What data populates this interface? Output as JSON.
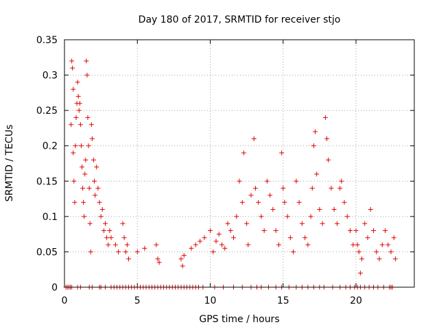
{
  "chart_data": {
    "type": "scatter",
    "title": "Day 180 of 2017, SRMTID for receiver stjo",
    "xlabel": "GPS time / hours",
    "ylabel": "SRMTID / TECUs",
    "xlim": [
      0,
      24
    ],
    "ylim": [
      0,
      0.35
    ],
    "xticks": [
      0,
      5,
      10,
      15,
      20
    ],
    "yticks": [
      0,
      0.05,
      0.1,
      0.15,
      0.2,
      0.25,
      0.3,
      0.35
    ],
    "xtick_labels": [
      "0",
      "5",
      "10",
      "15",
      "20"
    ],
    "ytick_labels": [
      "0",
      "0.05",
      "0.1",
      "0.15",
      "0.2",
      "0.25",
      "0.3",
      "0.35"
    ],
    "grid": true,
    "marker": "+",
    "color": "#e00000",
    "series": [
      {
        "points": [
          [
            0.45,
            0.23
          ],
          [
            0.5,
            0.32
          ],
          [
            0.55,
            0.31
          ],
          [
            0.6,
            0.28
          ],
          [
            0.6,
            0.19
          ],
          [
            0.65,
            0.15
          ],
          [
            0.7,
            0.12
          ],
          [
            0.75,
            0.2
          ],
          [
            0.8,
            0.24
          ],
          [
            0.85,
            0.26
          ],
          [
            0.9,
            0.29
          ],
          [
            0.95,
            0.27
          ],
          [
            1.0,
            0.25
          ],
          [
            1.05,
            0.26
          ],
          [
            1.1,
            0.23
          ],
          [
            1.15,
            0.2
          ],
          [
            1.2,
            0.17
          ],
          [
            1.25,
            0.14
          ],
          [
            1.3,
            0.12
          ],
          [
            1.35,
            0.1
          ],
          [
            1.4,
            0.16
          ],
          [
            1.45,
            0.18
          ],
          [
            1.5,
            0.32
          ],
          [
            1.55,
            0.3
          ],
          [
            1.6,
            0.24
          ],
          [
            1.65,
            0.2
          ],
          [
            1.7,
            0.14
          ],
          [
            1.75,
            0.09
          ],
          [
            1.8,
            0.05
          ],
          [
            1.85,
            0.23
          ],
          [
            1.9,
            0.21
          ],
          [
            2.0,
            0.18
          ],
          [
            2.05,
            0.15
          ],
          [
            2.1,
            0.13
          ],
          [
            2.2,
            0.17
          ],
          [
            2.3,
            0.14
          ],
          [
            2.4,
            0.12
          ],
          [
            2.5,
            0.1
          ],
          [
            2.6,
            0.11
          ],
          [
            2.7,
            0.08
          ],
          [
            2.8,
            0.09
          ],
          [
            2.9,
            0.07
          ],
          [
            3.0,
            0.06
          ],
          [
            3.1,
            0.08
          ],
          [
            3.2,
            0.07
          ],
          [
            3.5,
            0.06
          ],
          [
            3.7,
            0.05
          ],
          [
            4.0,
            0.09
          ],
          [
            4.1,
            0.07
          ],
          [
            4.2,
            0.05
          ],
          [
            4.3,
            0.06
          ],
          [
            4.4,
            0.04
          ],
          [
            5.0,
            0.05
          ],
          [
            5.5,
            0.055
          ],
          [
            6.3,
            0.06
          ],
          [
            6.4,
            0.04
          ],
          [
            6.5,
            0.035
          ],
          [
            8.0,
            0.04
          ],
          [
            8.1,
            0.03
          ],
          [
            8.2,
            0.045
          ],
          [
            8.7,
            0.055
          ],
          [
            9.0,
            0.06
          ],
          [
            9.3,
            0.065
          ],
          [
            9.6,
            0.07
          ],
          [
            10.0,
            0.08
          ],
          [
            10.2,
            0.05
          ],
          [
            10.4,
            0.065
          ],
          [
            10.6,
            0.075
          ],
          [
            10.8,
            0.06
          ],
          [
            11.0,
            0.055
          ],
          [
            11.2,
            0.09
          ],
          [
            11.4,
            0.08
          ],
          [
            11.6,
            0.07
          ],
          [
            11.8,
            0.1
          ],
          [
            12.0,
            0.15
          ],
          [
            12.2,
            0.12
          ],
          [
            12.3,
            0.19
          ],
          [
            12.5,
            0.09
          ],
          [
            12.6,
            0.06
          ],
          [
            12.8,
            0.13
          ],
          [
            13.0,
            0.21
          ],
          [
            13.1,
            0.14
          ],
          [
            13.3,
            0.12
          ],
          [
            13.5,
            0.1
          ],
          [
            13.7,
            0.08
          ],
          [
            13.9,
            0.15
          ],
          [
            14.1,
            0.13
          ],
          [
            14.3,
            0.11
          ],
          [
            14.5,
            0.08
          ],
          [
            14.7,
            0.06
          ],
          [
            14.9,
            0.19
          ],
          [
            15.0,
            0.14
          ],
          [
            15.1,
            0.12
          ],
          [
            15.3,
            0.1
          ],
          [
            15.5,
            0.07
          ],
          [
            15.7,
            0.05
          ],
          [
            15.9,
            0.15
          ],
          [
            16.1,
            0.12
          ],
          [
            16.3,
            0.09
          ],
          [
            16.5,
            0.07
          ],
          [
            16.7,
            0.06
          ],
          [
            16.9,
            0.1
          ],
          [
            17.0,
            0.14
          ],
          [
            17.1,
            0.2
          ],
          [
            17.2,
            0.22
          ],
          [
            17.3,
            0.16
          ],
          [
            17.5,
            0.11
          ],
          [
            17.7,
            0.09
          ],
          [
            17.9,
            0.24
          ],
          [
            18.0,
            0.21
          ],
          [
            18.1,
            0.18
          ],
          [
            18.3,
            0.14
          ],
          [
            18.5,
            0.11
          ],
          [
            18.7,
            0.09
          ],
          [
            18.9,
            0.14
          ],
          [
            19.0,
            0.15
          ],
          [
            19.2,
            0.12
          ],
          [
            19.4,
            0.1
          ],
          [
            19.6,
            0.08
          ],
          [
            19.8,
            0.06
          ],
          [
            20.0,
            0.08
          ],
          [
            20.1,
            0.06
          ],
          [
            20.2,
            0.05
          ],
          [
            20.3,
            0.02
          ],
          [
            20.4,
            0.04
          ],
          [
            20.6,
            0.09
          ],
          [
            20.8,
            0.07
          ],
          [
            21.0,
            0.11
          ],
          [
            21.2,
            0.08
          ],
          [
            21.4,
            0.05
          ],
          [
            21.6,
            0.04
          ],
          [
            21.8,
            0.06
          ],
          [
            22.0,
            0.08
          ],
          [
            22.2,
            0.06
          ],
          [
            22.4,
            0.05
          ],
          [
            22.6,
            0.07
          ],
          [
            22.7,
            0.04
          ]
        ]
      },
      {
        "points": [
          [
            0.1,
            0
          ],
          [
            0.2,
            0
          ],
          [
            0.3,
            0
          ],
          [
            0.4,
            0
          ],
          [
            0.5,
            0
          ],
          [
            0.9,
            0
          ],
          [
            1.1,
            0
          ],
          [
            1.7,
            0
          ],
          [
            1.9,
            0
          ],
          [
            2.4,
            0
          ],
          [
            2.5,
            0
          ],
          [
            2.8,
            0
          ],
          [
            3.2,
            0
          ],
          [
            3.4,
            0
          ],
          [
            3.6,
            0
          ],
          [
            3.8,
            0
          ],
          [
            4.0,
            0
          ],
          [
            4.2,
            0
          ],
          [
            4.4,
            0
          ],
          [
            4.6,
            0
          ],
          [
            4.8,
            0
          ],
          [
            5.0,
            0
          ],
          [
            5.2,
            0
          ],
          [
            5.4,
            0
          ],
          [
            5.6,
            0
          ],
          [
            5.8,
            0
          ],
          [
            6.0,
            0
          ],
          [
            6.2,
            0
          ],
          [
            6.4,
            0
          ],
          [
            6.6,
            0
          ],
          [
            6.8,
            0
          ],
          [
            7.0,
            0
          ],
          [
            7.2,
            0
          ],
          [
            7.4,
            0
          ],
          [
            7.6,
            0
          ],
          [
            7.8,
            0
          ],
          [
            8.0,
            0
          ],
          [
            8.2,
            0
          ],
          [
            8.4,
            0
          ],
          [
            8.6,
            0
          ],
          [
            8.8,
            0
          ],
          [
            9.0,
            0
          ],
          [
            9.2,
            0
          ],
          [
            9.5,
            0
          ],
          [
            10.3,
            0
          ],
          [
            10.9,
            0
          ],
          [
            11.6,
            0
          ],
          [
            12.2,
            0
          ],
          [
            12.8,
            0
          ],
          [
            13.2,
            0
          ],
          [
            13.5,
            0
          ],
          [
            14.0,
            0
          ],
          [
            14.5,
            0
          ],
          [
            14.9,
            0
          ],
          [
            15.4,
            0
          ],
          [
            15.9,
            0
          ],
          [
            16.3,
            0
          ],
          [
            16.7,
            0
          ],
          [
            17.1,
            0
          ],
          [
            17.5,
            0
          ],
          [
            17.8,
            0
          ],
          [
            18.4,
            0
          ],
          [
            18.9,
            0
          ],
          [
            19.3,
            0
          ],
          [
            19.6,
            0
          ],
          [
            19.9,
            0
          ],
          [
            20.1,
            0
          ],
          [
            20.3,
            0
          ],
          [
            20.6,
            0
          ],
          [
            20.9,
            0
          ],
          [
            21.2,
            0
          ],
          [
            21.5,
            0
          ],
          [
            21.9,
            0
          ],
          [
            22.3,
            0
          ],
          [
            22.4,
            0
          ],
          [
            22.5,
            0
          ]
        ]
      }
    ]
  }
}
